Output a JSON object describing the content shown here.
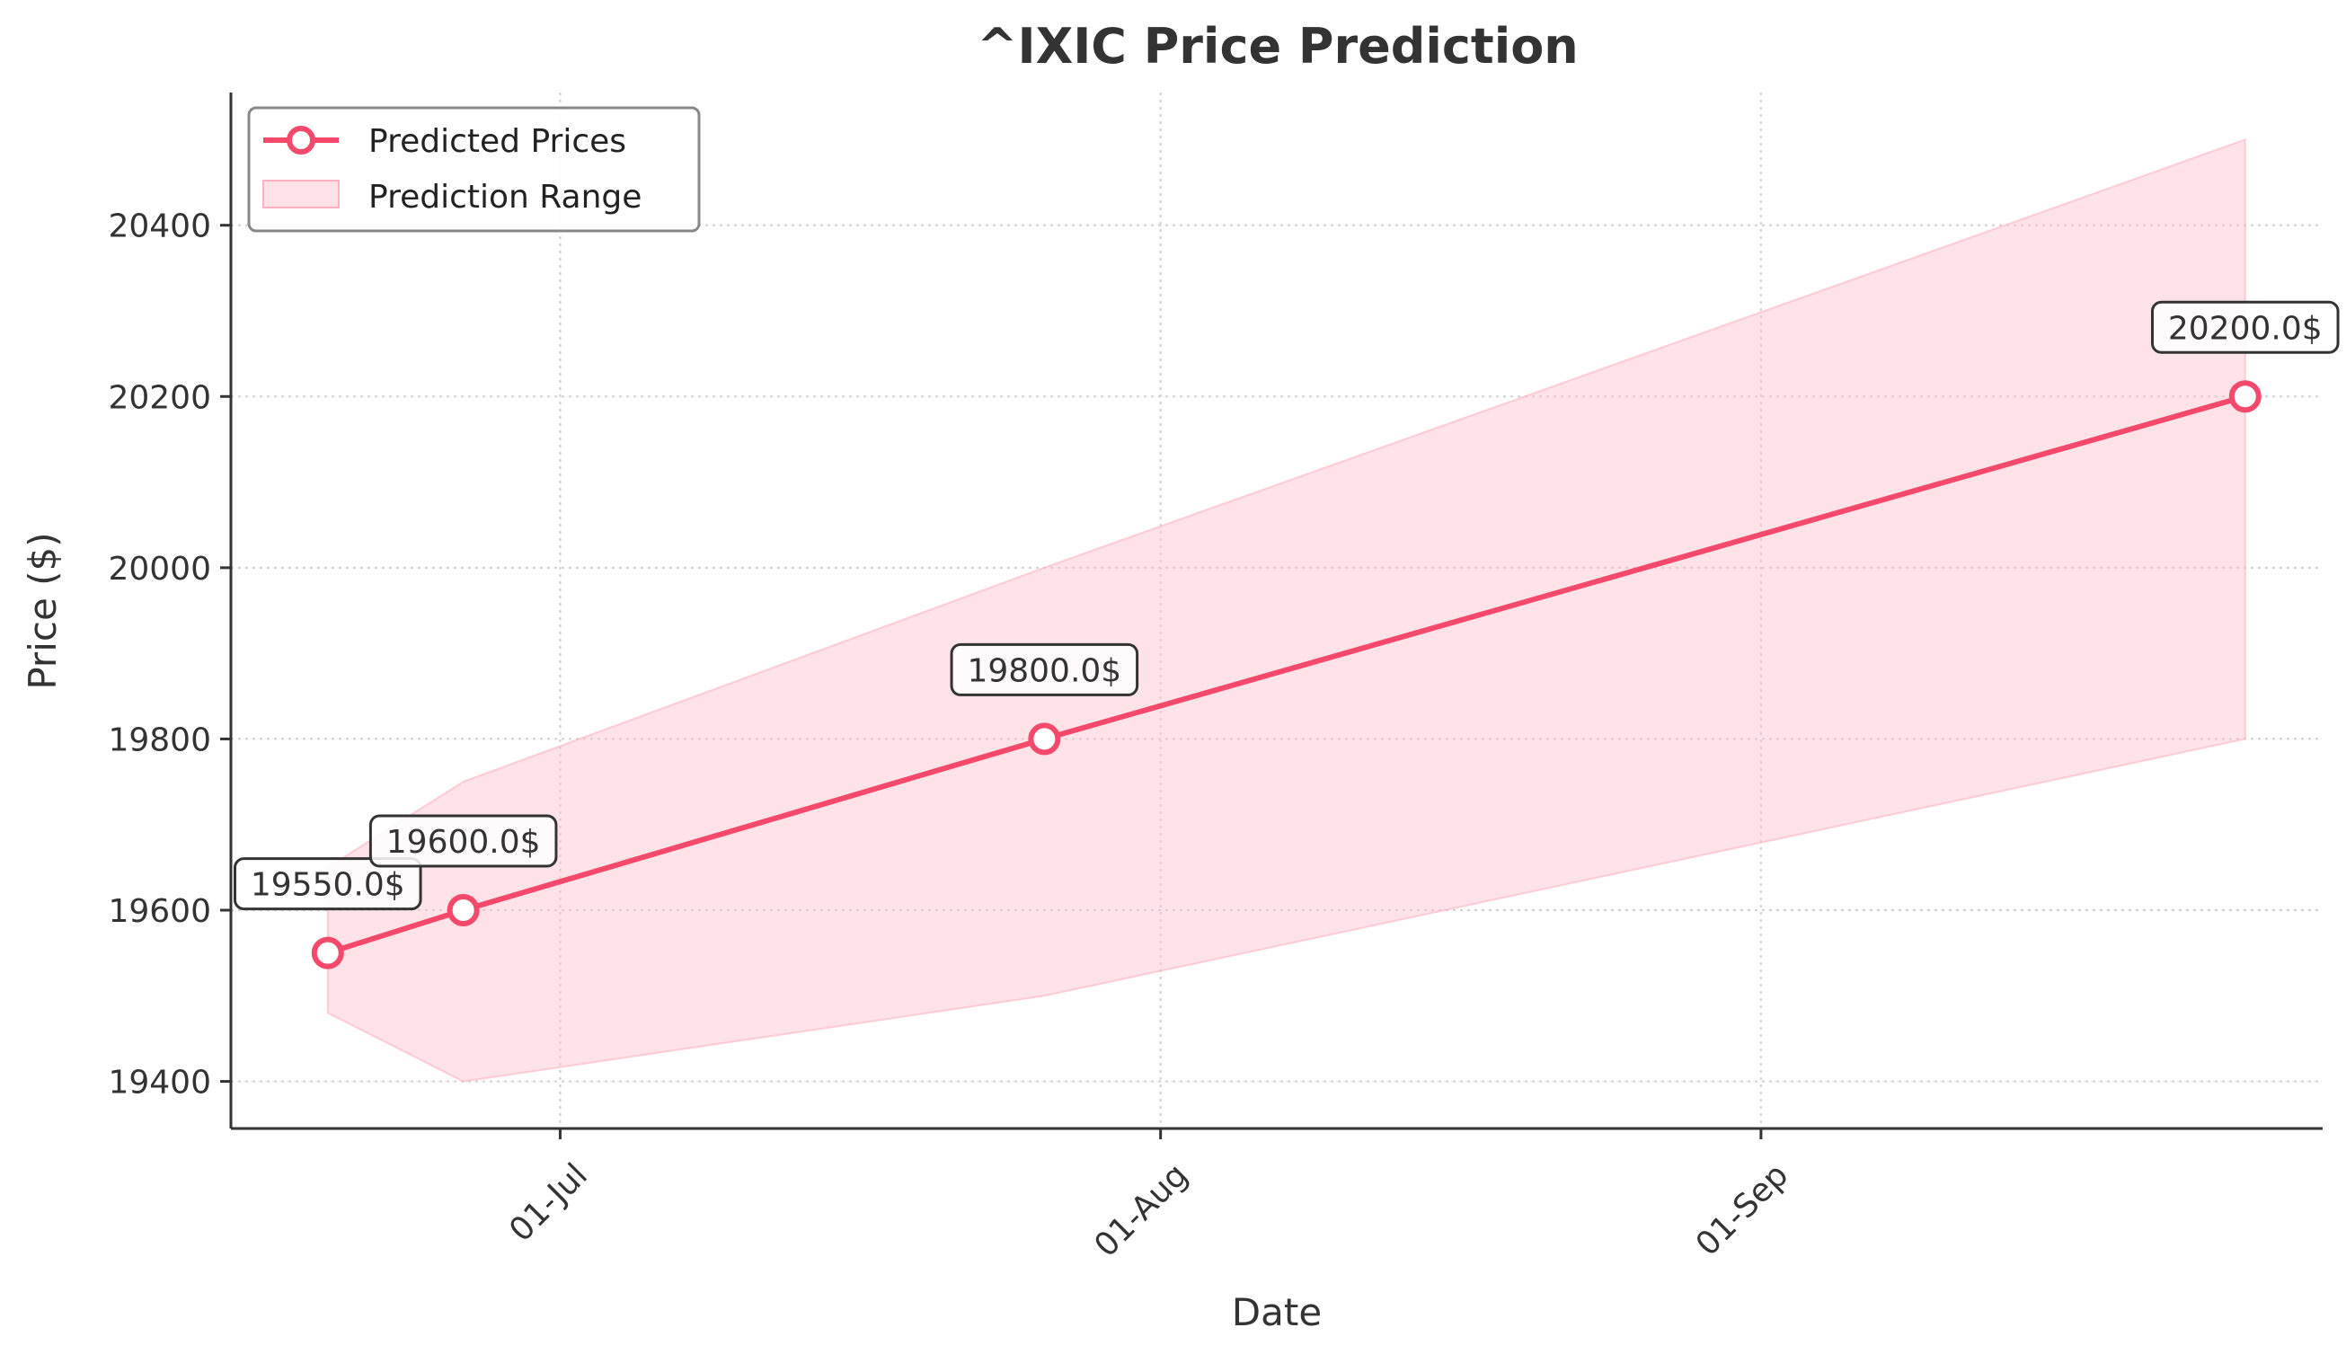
{
  "chart_data": {
    "type": "line",
    "title": "^IXIC Price Prediction",
    "xlabel": "Date",
    "ylabel": "Price ($)",
    "x_tick_labels": [
      {
        "date": "2024-07-01",
        "label": "01-Jul"
      },
      {
        "date": "2024-08-01",
        "label": "01-Aug"
      },
      {
        "date": "2024-09-01",
        "label": "01-Sep"
      }
    ],
    "y_ticks": [
      19400,
      19600,
      19800,
      20000,
      20200,
      20400
    ],
    "xlim": [
      "2024-06-14",
      "2024-09-30"
    ],
    "ylim": [
      19345,
      20555
    ],
    "grid": true,
    "legend_position": "top-left",
    "series": [
      {
        "name": "Predicted Prices",
        "color": "#f4496a",
        "points": [
          {
            "date": "2024-06-19",
            "value": 19550,
            "label": "19550.0$"
          },
          {
            "date": "2024-06-26",
            "value": 19600,
            "label": "19600.0$"
          },
          {
            "date": "2024-07-26",
            "value": 19800,
            "label": "19800.0$"
          },
          {
            "date": "2024-09-26",
            "value": 20200,
            "label": "20200.0$"
          }
        ]
      }
    ],
    "range": {
      "name": "Prediction Range",
      "color": "#ffc0cb",
      "points": [
        {
          "date": "2024-06-19",
          "low": 19480,
          "high": 19650
        },
        {
          "date": "2024-06-26",
          "low": 19400,
          "high": 19750
        },
        {
          "date": "2024-07-26",
          "low": 19500,
          "high": 20000
        },
        {
          "date": "2024-09-26",
          "low": 19800,
          "high": 20500
        }
      ]
    }
  }
}
